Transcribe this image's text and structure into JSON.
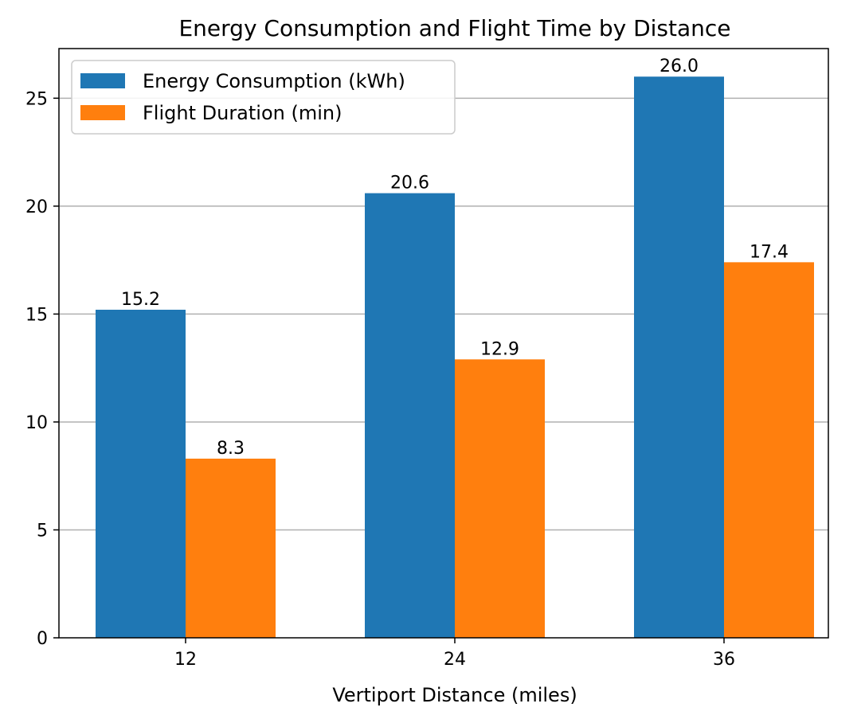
{
  "chart_data": {
    "type": "bar",
    "title": "Energy Consumption and Flight Time by Distance",
    "xlabel": "Vertiport Distance (miles)",
    "ylabel": "",
    "categories": [
      "12",
      "24",
      "36"
    ],
    "series": [
      {
        "name": "Energy Consumption (kWh)",
        "values": [
          15.2,
          20.6,
          26.0
        ],
        "labels": [
          "15.2",
          "20.6",
          "26.0"
        ],
        "color": "#1f77b4"
      },
      {
        "name": "Flight Duration (min)",
        "values": [
          8.3,
          12.9,
          17.4
        ],
        "labels": [
          "8.3",
          "12.9",
          "17.4"
        ],
        "color": "#ff7f0e"
      }
    ],
    "ylim": [
      0,
      27.3
    ],
    "yticks": [
      0,
      5,
      10,
      15,
      20,
      25
    ],
    "grid": "y",
    "legend_position": "top-left"
  }
}
